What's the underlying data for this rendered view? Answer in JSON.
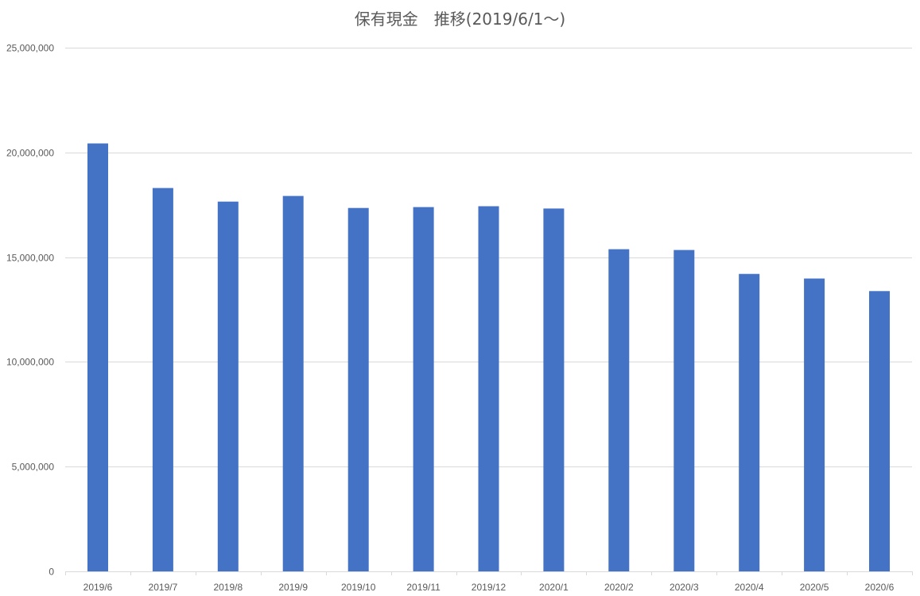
{
  "colors": {
    "bar": "#4472c4",
    "gridline": "#d9d9d9",
    "axis_text": "#595959"
  },
  "chart_data": {
    "type": "bar",
    "title": "保有現金　推移(2019/6/1～)",
    "xlabel": "",
    "ylabel": "",
    "categories": [
      "2019/6",
      "2019/7",
      "2019/8",
      "2019/9",
      "2019/10",
      "2019/11",
      "2019/12",
      "2020/1",
      "2020/2",
      "2020/3",
      "2020/4",
      "2020/5",
      "2020/6"
    ],
    "values": [
      20430000,
      18300000,
      17650000,
      17920000,
      17350000,
      17390000,
      17430000,
      17320000,
      15380000,
      15340000,
      14200000,
      13980000,
      13380000
    ],
    "ylim": [
      0,
      25000000
    ],
    "yticks": [
      0,
      5000000,
      10000000,
      15000000,
      20000000,
      25000000
    ],
    "ytick_labels": [
      "0",
      "5,000,000",
      "10,000,000",
      "15,000,000",
      "20,000,000",
      "25,000,000"
    ],
    "grid": true,
    "legend": "none"
  }
}
